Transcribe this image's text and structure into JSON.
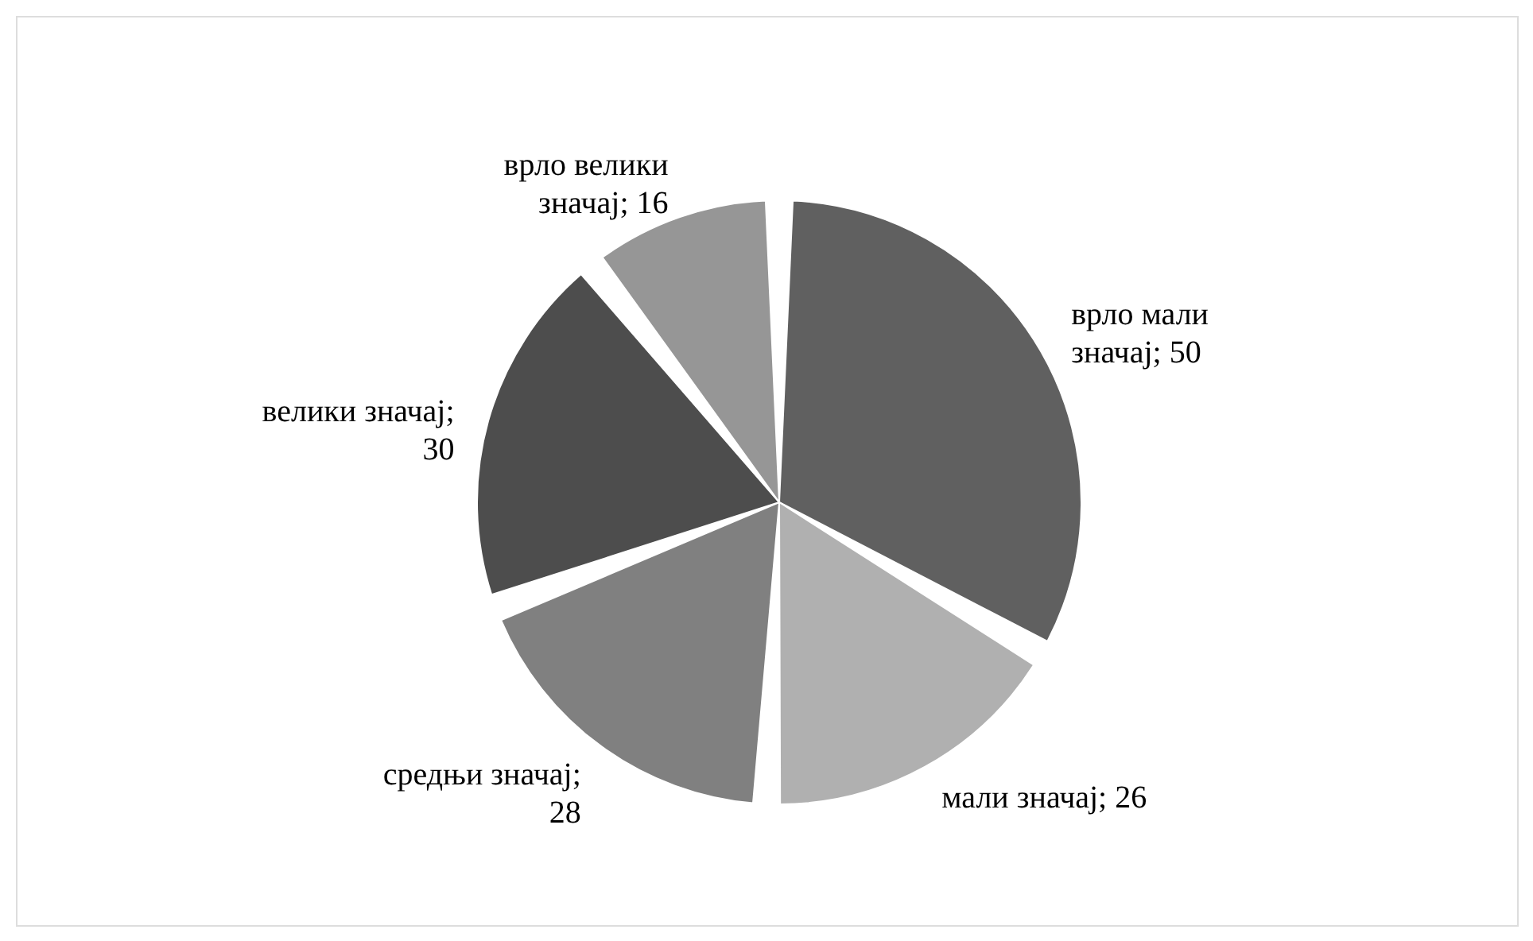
{
  "chart_data": {
    "type": "pie",
    "categories": [
      "врло мали значај; 50",
      "мали значај; 26",
      "средњи значај; 28",
      "велики значај; 30",
      "врло велики значај; 16"
    ],
    "values": [
      50,
      26,
      28,
      30,
      16
    ],
    "colors": [
      "#606060",
      "#b0b0b0",
      "#808080",
      "#4d4d4d",
      "#969696"
    ],
    "legend": false
  }
}
